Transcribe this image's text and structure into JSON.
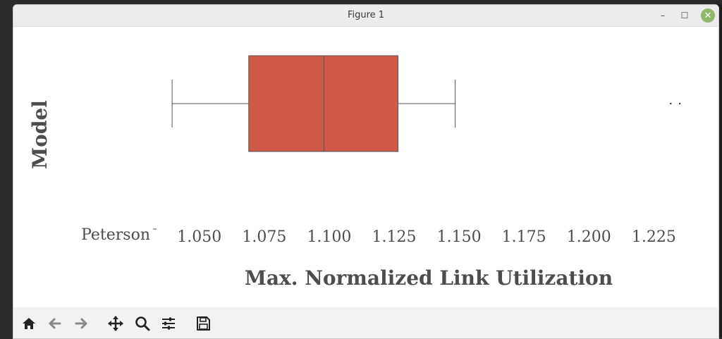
{
  "window": {
    "title": "Figure 1",
    "minimize": "–",
    "maximize": "☐",
    "close": "✕"
  },
  "colors": {
    "box": "#cd5b48",
    "line": "#555555",
    "text": "#4d4d4d"
  },
  "toolbar": {
    "icons": [
      "home-icon",
      "back-arrow-icon",
      "forward-arrow-icon",
      "pan-icon",
      "zoom-icon",
      "configure-subplots-icon",
      "save-icon"
    ]
  },
  "chart_data": {
    "type": "box",
    "title": "",
    "xlabel": "Max. Normalized Link Utilization",
    "ylabel": "Model",
    "categories": [
      "Peterson"
    ],
    "xlim": [
      1.0335,
      1.2355
    ],
    "xticks": [
      1.05,
      1.075,
      1.1,
      1.125,
      1.15,
      1.175,
      1.2,
      1.225
    ],
    "xtick_labels": [
      "1.050",
      "1.075",
      "1.100",
      "1.125",
      "1.150",
      "1.175",
      "1.200",
      "1.225"
    ],
    "series": [
      {
        "category": "Peterson",
        "whisker_low": 1.0395,
        "q1": 1.069,
        "median": 1.098,
        "q3": 1.1265,
        "whisker_high": 1.1485,
        "outliers": [
          1.2315,
          1.235
        ]
      }
    ],
    "grid": false,
    "legend": "none"
  }
}
